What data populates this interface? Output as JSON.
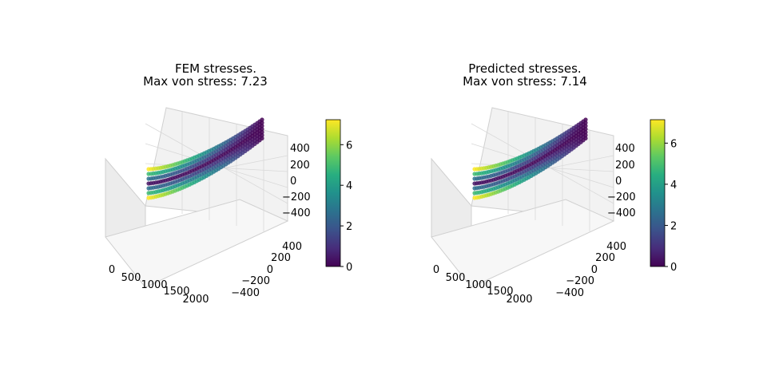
{
  "chart_data": [
    {
      "type": "scatter",
      "title_line1": "FEM stresses.",
      "title_line2": "Max von stress: 7.23",
      "max_stress": 7.23,
      "x_ticks": [
        "0",
        "500",
        "1000",
        "1500",
        "2000"
      ],
      "y_ticks": [
        "400",
        "200",
        "0",
        "−200",
        "−400"
      ],
      "z_ticks": [
        "400",
        "200",
        "0",
        "−200",
        "−400"
      ],
      "xlim": [
        0,
        2000
      ],
      "ylim": [
        -400,
        400
      ],
      "zlim": [
        -400,
        400
      ],
      "colorbar": {
        "ticks": [
          "0",
          "2",
          "4",
          "6"
        ],
        "range": [
          0,
          7.23
        ],
        "colormap": "viridis"
      },
      "grid": true
    },
    {
      "type": "scatter",
      "title_line1": "Predicted stresses.",
      "title_line2": "Max von stress: 7.14",
      "max_stress": 7.14,
      "x_ticks": [
        "0",
        "500",
        "1000",
        "1500",
        "2000"
      ],
      "y_ticks": [
        "400",
        "200",
        "0",
        "−200",
        "−400"
      ],
      "z_ticks": [
        "400",
        "200",
        "0",
        "−200",
        "−400"
      ],
      "xlim": [
        0,
        2000
      ],
      "ylim": [
        -400,
        400
      ],
      "zlim": [
        -400,
        400
      ],
      "colorbar": {
        "ticks": [
          "0",
          "2",
          "4",
          "6"
        ],
        "range": [
          0,
          7.14
        ],
        "colormap": "viridis"
      },
      "grid": true
    }
  ]
}
